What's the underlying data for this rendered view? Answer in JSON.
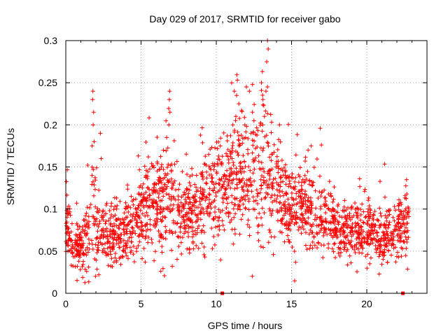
{
  "chart_data": {
    "type": "scatter",
    "title": "Day 029 of 2017, SRMTID for receiver gabo",
    "xlabel": "GPS time / hours",
    "ylabel": "SRMTID / TECUs",
    "xlim": [
      0,
      24
    ],
    "ylim": [
      0,
      0.3
    ],
    "xticks": [
      0,
      5,
      10,
      15,
      20
    ],
    "xtick_labels": [
      "0",
      "5",
      "10",
      "15",
      "20"
    ],
    "yticks": [
      0,
      0.05,
      0.1,
      0.15,
      0.2,
      0.25,
      0.3
    ],
    "ytick_labels": [
      "0",
      "0.05",
      "0.1",
      "0.15",
      "0.2",
      "0.25",
      "0.3"
    ],
    "grid": true,
    "marker": "+",
    "colors": {
      "points": "#ff0000",
      "axis": "#000000",
      "grid": "#a0a0a0"
    },
    "trend": [
      {
        "x": 0.0,
        "y": 0.085,
        "s": 0.02
      },
      {
        "x": 0.5,
        "y": 0.055,
        "s": 0.013
      },
      {
        "x": 1.0,
        "y": 0.055,
        "s": 0.014
      },
      {
        "x": 1.5,
        "y": 0.07,
        "s": 0.022
      },
      {
        "x": 1.8,
        "y": 0.1,
        "s": 0.035
      },
      {
        "x": 2.2,
        "y": 0.07,
        "s": 0.028
      },
      {
        "x": 2.8,
        "y": 0.065,
        "s": 0.018
      },
      {
        "x": 3.5,
        "y": 0.07,
        "s": 0.02
      },
      {
        "x": 4.0,
        "y": 0.075,
        "s": 0.022
      },
      {
        "x": 5.0,
        "y": 0.095,
        "s": 0.025
      },
      {
        "x": 6.0,
        "y": 0.11,
        "s": 0.025
      },
      {
        "x": 6.8,
        "y": 0.11,
        "s": 0.035
      },
      {
        "x": 7.5,
        "y": 0.09,
        "s": 0.022
      },
      {
        "x": 8.5,
        "y": 0.1,
        "s": 0.025
      },
      {
        "x": 9.5,
        "y": 0.115,
        "s": 0.03
      },
      {
        "x": 10.5,
        "y": 0.13,
        "s": 0.03
      },
      {
        "x": 11.5,
        "y": 0.14,
        "s": 0.038
      },
      {
        "x": 12.5,
        "y": 0.13,
        "s": 0.035
      },
      {
        "x": 13.3,
        "y": 0.14,
        "s": 0.04
      },
      {
        "x": 14.0,
        "y": 0.12,
        "s": 0.03
      },
      {
        "x": 15.0,
        "y": 0.1,
        "s": 0.025
      },
      {
        "x": 16.0,
        "y": 0.1,
        "s": 0.025
      },
      {
        "x": 17.0,
        "y": 0.09,
        "s": 0.022
      },
      {
        "x": 18.0,
        "y": 0.075,
        "s": 0.015
      },
      {
        "x": 19.0,
        "y": 0.07,
        "s": 0.016
      },
      {
        "x": 20.0,
        "y": 0.075,
        "s": 0.018
      },
      {
        "x": 21.0,
        "y": 0.065,
        "s": 0.016
      },
      {
        "x": 22.0,
        "y": 0.07,
        "s": 0.015
      },
      {
        "x": 22.7,
        "y": 0.09,
        "s": 0.02
      }
    ],
    "x_start": 0.0,
    "x_end": 22.8,
    "point_count": 2200,
    "spikes": [
      {
        "x": 1.8,
        "y": 0.24
      },
      {
        "x": 1.78,
        "y": 0.23
      },
      {
        "x": 1.85,
        "y": 0.215
      },
      {
        "x": 1.82,
        "y": 0.2
      },
      {
        "x": 1.88,
        "y": 0.18
      },
      {
        "x": 1.75,
        "y": 0.175
      },
      {
        "x": 2.3,
        "y": 0.19
      },
      {
        "x": 2.35,
        "y": 0.16
      },
      {
        "x": 6.9,
        "y": 0.24
      },
      {
        "x": 6.88,
        "y": 0.23
      },
      {
        "x": 6.92,
        "y": 0.215
      },
      {
        "x": 6.85,
        "y": 0.2
      },
      {
        "x": 6.7,
        "y": 0.185
      },
      {
        "x": 11.4,
        "y": 0.253
      },
      {
        "x": 11.2,
        "y": 0.24
      },
      {
        "x": 11.35,
        "y": 0.235
      },
      {
        "x": 11.5,
        "y": 0.225
      },
      {
        "x": 11.3,
        "y": 0.21
      },
      {
        "x": 11.1,
        "y": 0.2
      },
      {
        "x": 12.0,
        "y": 0.245
      },
      {
        "x": 12.2,
        "y": 0.24
      },
      {
        "x": 12.4,
        "y": 0.215
      },
      {
        "x": 12.5,
        "y": 0.205
      },
      {
        "x": 12.3,
        "y": 0.19
      },
      {
        "x": 13.4,
        "y": 0.3
      },
      {
        "x": 13.45,
        "y": 0.29
      },
      {
        "x": 13.35,
        "y": 0.275
      },
      {
        "x": 13.4,
        "y": 0.245
      },
      {
        "x": 13.3,
        "y": 0.24
      },
      {
        "x": 13.0,
        "y": 0.25
      },
      {
        "x": 13.1,
        "y": 0.23
      },
      {
        "x": 13.2,
        "y": 0.21
      },
      {
        "x": 14.2,
        "y": 0.2
      },
      {
        "x": 16.3,
        "y": 0.175
      },
      {
        "x": 16.1,
        "y": 0.17
      }
    ],
    "zero_markers": [
      {
        "x": 10.4,
        "y": 0.0
      },
      {
        "x": 22.4,
        "y": 0.0
      }
    ]
  }
}
